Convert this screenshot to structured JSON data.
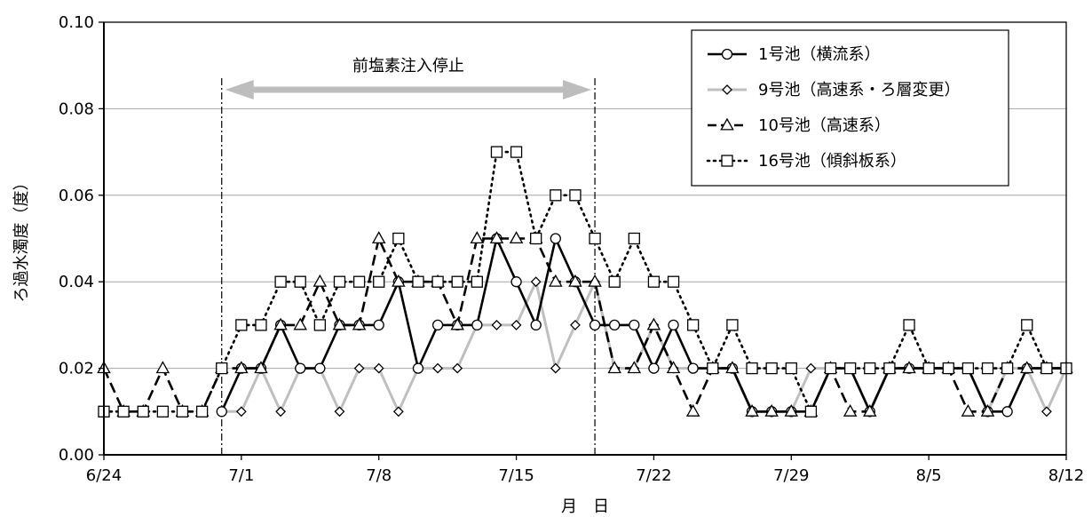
{
  "chart_data": {
    "type": "line",
    "xlabel": "月　日",
    "ylabel": "ろ過水濁度（度）",
    "ylim": [
      0,
      0.1
    ],
    "y_ticks": [
      "0.00",
      "0.02",
      "0.04",
      "0.06",
      "0.08",
      "0.10"
    ],
    "x_ticks": [
      "6/24",
      "7/1",
      "7/8",
      "7/15",
      "7/22",
      "7/29",
      "8/5",
      "8/12"
    ],
    "x_range": [
      "6/24",
      "8/12"
    ],
    "grid": "horizontal",
    "legend_position": "top-right",
    "annotation": {
      "text": "前塩素注入停止",
      "start": "6/30",
      "end": "7/19"
    },
    "series": [
      {
        "name": "1号池（横流系）",
        "marker": "circle",
        "color": "#000000",
        "dash": "solid",
        "x": [
          "6/30",
          "7/1",
          "7/2",
          "7/3",
          "7/4",
          "7/5",
          "7/6",
          "7/7",
          "7/8",
          "7/9",
          "7/10",
          "7/11",
          "7/12",
          "7/13",
          "7/14",
          "7/15",
          "7/16",
          "7/17",
          "7/18",
          "7/19",
          "7/20",
          "7/21",
          "7/22",
          "7/23",
          "7/24",
          "7/25",
          "7/26",
          "7/27",
          "7/28",
          "7/29",
          "7/30",
          "7/31",
          "8/1",
          "8/2",
          "8/3",
          "8/4",
          "8/5",
          "8/6",
          "8/7",
          "8/8",
          "8/9",
          "8/10",
          "8/11",
          "8/12"
        ],
        "values": [
          0.01,
          0.02,
          0.02,
          0.03,
          0.02,
          0.02,
          0.03,
          0.03,
          0.03,
          0.04,
          0.02,
          0.03,
          0.03,
          0.03,
          0.05,
          0.04,
          0.03,
          0.05,
          0.04,
          0.03,
          0.03,
          0.03,
          0.02,
          0.03,
          0.02,
          0.02,
          0.02,
          0.01,
          0.01,
          0.01,
          0.01,
          0.02,
          0.02,
          0.01,
          0.02,
          0.02,
          0.02,
          0.02,
          0.02,
          0.01,
          0.01,
          0.02,
          0.02,
          0.02
        ]
      },
      {
        "name": "9号池（高速系・ろ層変更）",
        "marker": "diamond",
        "color": "#bfbfbf",
        "dash": "solid",
        "x": [
          "6/30",
          "7/1",
          "7/2",
          "7/3",
          "7/4",
          "7/5",
          "7/6",
          "7/7",
          "7/8",
          "7/9",
          "7/10",
          "7/11",
          "7/12",
          "7/13",
          "7/14",
          "7/15",
          "7/16",
          "7/17",
          "7/18",
          "7/19",
          "7/20",
          "7/21",
          "7/22",
          "7/23",
          "7/24",
          "7/25",
          "7/26",
          "7/27",
          "7/28",
          "7/29",
          "7/30",
          "7/31",
          "8/1",
          "8/2",
          "8/3",
          "8/4",
          "8/5",
          "8/6",
          "8/7",
          "8/8",
          "8/9",
          "8/10",
          "8/11",
          "8/12"
        ],
        "values": [
          0.01,
          0.01,
          0.02,
          0.01,
          0.02,
          0.02,
          0.01,
          0.02,
          0.02,
          0.01,
          0.02,
          0.02,
          0.02,
          0.03,
          0.03,
          0.03,
          0.04,
          0.02,
          0.03,
          0.04,
          0.02,
          0.02,
          0.03,
          0.02,
          0.02,
          0.02,
          0.02,
          0.01,
          0.01,
          0.01,
          0.02,
          0.02,
          0.02,
          0.01,
          0.02,
          0.02,
          0.02,
          0.02,
          0.02,
          0.01,
          0.02,
          0.02,
          0.01,
          0.02
        ]
      },
      {
        "name": "10号池（高速系）",
        "marker": "triangle",
        "color": "#000000",
        "dash": "dashed",
        "x": [
          "6/24",
          "6/25",
          "6/26",
          "6/27",
          "6/28",
          "6/29",
          "6/30",
          "7/1",
          "7/2",
          "7/3",
          "7/4",
          "7/5",
          "7/6",
          "7/7",
          "7/8",
          "7/9",
          "7/10",
          "7/11",
          "7/12",
          "7/13",
          "7/14",
          "7/15",
          "7/16",
          "7/17",
          "7/18",
          "7/19",
          "7/20",
          "7/21",
          "7/22",
          "7/23",
          "7/24",
          "7/25",
          "7/26",
          "7/27",
          "7/28",
          "7/29",
          "7/30",
          "7/31",
          "8/1",
          "8/2",
          "8/3",
          "8/4",
          "8/5",
          "8/6",
          "8/7",
          "8/8",
          "8/9",
          "8/10",
          "8/11",
          "8/12"
        ],
        "values": [
          0.02,
          0.01,
          0.01,
          0.02,
          0.01,
          0.01,
          0.02,
          0.02,
          0.02,
          0.03,
          0.03,
          0.04,
          0.03,
          0.03,
          0.05,
          0.04,
          0.04,
          0.04,
          0.03,
          0.05,
          0.05,
          0.05,
          0.05,
          0.04,
          0.04,
          0.04,
          0.02,
          0.02,
          0.03,
          0.02,
          0.01,
          0.02,
          0.02,
          0.01,
          0.01,
          0.01,
          0.01,
          0.02,
          0.01,
          0.01,
          0.02,
          0.02,
          0.02,
          0.02,
          0.01,
          0.01,
          0.02,
          0.02,
          0.02,
          0.02
        ]
      },
      {
        "name": "16号池（傾斜板系）",
        "marker": "square",
        "color": "#000000",
        "dash": "dotted",
        "x": [
          "6/24",
          "6/25",
          "6/26",
          "6/27",
          "6/28",
          "6/29",
          "6/30",
          "7/1",
          "7/2",
          "7/3",
          "7/4",
          "7/5",
          "7/6",
          "7/7",
          "7/8",
          "7/9",
          "7/10",
          "7/11",
          "7/12",
          "7/13",
          "7/14",
          "7/15",
          "7/16",
          "7/17",
          "7/18",
          "7/19",
          "7/20",
          "7/21",
          "7/22",
          "7/23",
          "7/24",
          "7/25",
          "7/26",
          "7/27",
          "7/28",
          "7/29",
          "7/30",
          "7/31",
          "8/1",
          "8/2",
          "8/3",
          "8/4",
          "8/5",
          "8/6",
          "8/7",
          "8/8",
          "8/9",
          "8/10",
          "8/11",
          "8/12"
        ],
        "values": [
          0.01,
          0.01,
          0.01,
          0.01,
          0.01,
          0.01,
          0.02,
          0.03,
          0.03,
          0.04,
          0.04,
          0.03,
          0.04,
          0.04,
          0.04,
          0.05,
          0.04,
          0.04,
          0.04,
          0.04,
          0.07,
          0.07,
          0.05,
          0.06,
          0.06,
          0.05,
          0.04,
          0.05,
          0.04,
          0.04,
          0.03,
          0.02,
          0.03,
          0.02,
          0.02,
          0.02,
          0.01,
          0.02,
          0.02,
          0.02,
          0.02,
          0.03,
          0.02,
          0.02,
          0.02,
          0.02,
          0.02,
          0.03,
          0.02,
          0.02
        ]
      }
    ]
  }
}
